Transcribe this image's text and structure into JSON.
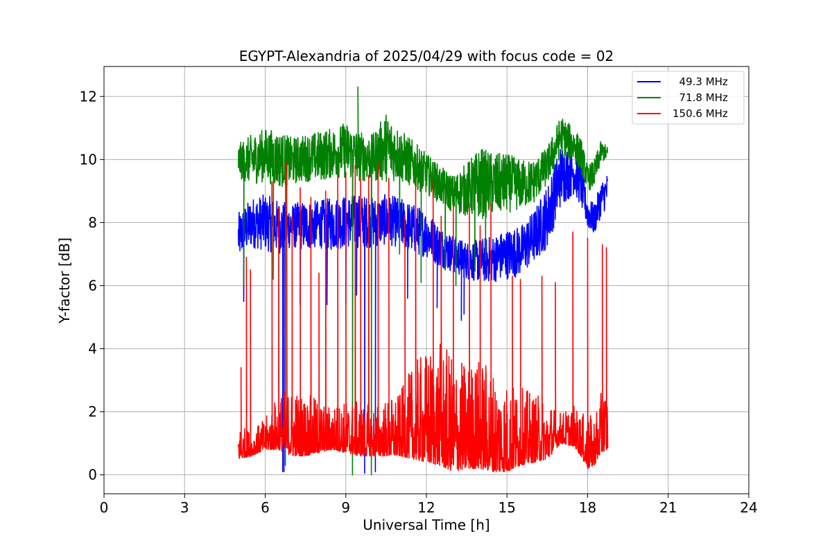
{
  "chart_data": {
    "type": "line",
    "title": "EGYPT-Alexandria of 2025/04/29 with focus code = 02",
    "xlabel": "Universal Time [h]",
    "ylabel": "Y-factor [dB]",
    "xlim": [
      0,
      24
    ],
    "ylim": [
      -0.6,
      12.95
    ],
    "xticks": [
      0,
      3,
      6,
      9,
      12,
      15,
      18,
      21,
      24
    ],
    "yticks": [
      0,
      2,
      4,
      6,
      8,
      10,
      12
    ],
    "grid": true,
    "legend_position": "top-right",
    "series": [
      {
        "name": "  49.3 MHz",
        "color": "#0000ff",
        "x": [
          5.0,
          5.5,
          6.0,
          6.5,
          7.0,
          7.5,
          8.0,
          8.5,
          9.0,
          9.5,
          10.0,
          10.5,
          11.0,
          11.5,
          12.0,
          12.5,
          13.0,
          13.5,
          14.0,
          14.5,
          15.0,
          15.5,
          16.0,
          16.5,
          17.0,
          17.5,
          17.75,
          18.0,
          18.25,
          18.5,
          18.75
        ],
        "low": [
          6.8,
          7.2,
          7.1,
          7.0,
          7.2,
          7.1,
          7.2,
          7.1,
          7.2,
          7.2,
          7.2,
          7.3,
          7.2,
          7.0,
          6.9,
          6.6,
          6.4,
          6.2,
          6.1,
          6.1,
          6.2,
          6.3,
          6.7,
          7.2,
          8.5,
          8.9,
          8.5,
          7.8,
          7.6,
          8.2,
          8.5
        ],
        "high": [
          8.3,
          8.8,
          8.9,
          8.7,
          8.6,
          8.7,
          8.7,
          8.8,
          8.9,
          8.9,
          8.8,
          8.9,
          8.8,
          8.6,
          8.4,
          7.9,
          7.6,
          7.4,
          7.5,
          7.6,
          7.8,
          7.9,
          8.4,
          9.2,
          10.5,
          10.3,
          9.9,
          8.8,
          8.6,
          9.3,
          9.6
        ],
        "spikes": [
          [
            5.2,
            5.5
          ],
          [
            6.7,
            0.1
          ],
          [
            6.65,
            0.1
          ],
          [
            7.3,
            5.4
          ],
          [
            8.3,
            5.4
          ],
          [
            9.0,
            5.4
          ],
          [
            9.4,
            5.7
          ],
          [
            9.7,
            0.05
          ],
          [
            10.1,
            0.1
          ],
          [
            11.3,
            5.6
          ],
          [
            12.4,
            5.3
          ],
          [
            13.3,
            4.9
          ],
          [
            13.4,
            5.1
          ]
        ]
      },
      {
        "name": "  71.8 MHz",
        "color": "#008000",
        "x": [
          5.0,
          5.5,
          6.0,
          6.5,
          7.0,
          7.5,
          8.0,
          8.5,
          9.0,
          9.5,
          10.0,
          10.5,
          11.0,
          11.5,
          12.0,
          12.5,
          13.0,
          13.5,
          14.0,
          14.5,
          15.0,
          15.5,
          16.0,
          16.5,
          17.0,
          17.5,
          17.75,
          18.0,
          18.25,
          18.5,
          18.75
        ],
        "low": [
          9.4,
          9.2,
          9.3,
          9.1,
          9.2,
          9.3,
          9.3,
          9.4,
          9.4,
          9.3,
          9.3,
          9.3,
          9.3,
          9.1,
          8.9,
          8.6,
          8.3,
          8.2,
          8.1,
          8.2,
          8.3,
          8.4,
          8.6,
          9.2,
          10.1,
          9.9,
          9.6,
          9.0,
          9.1,
          9.9,
          10.0
        ],
        "high": [
          10.5,
          10.8,
          11.0,
          10.9,
          10.7,
          10.8,
          10.9,
          11.0,
          11.2,
          10.9,
          10.8,
          11.5,
          11.0,
          10.6,
          10.2,
          9.8,
          9.5,
          9.9,
          10.4,
          10.2,
          10.2,
          10.0,
          10.0,
          10.4,
          11.4,
          11.0,
          10.7,
          9.8,
          10.0,
          10.6,
          10.4
        ],
        "spikes": [
          [
            5.2,
            6.0
          ],
          [
            6.3,
            6.2
          ],
          [
            6.75,
            0.3
          ],
          [
            9.25,
            0.0
          ],
          [
            9.45,
            12.3
          ],
          [
            9.95,
            0.0
          ],
          [
            11.0,
            7.0
          ],
          [
            11.8,
            6.1
          ],
          [
            12.7,
            6.5
          ],
          [
            13.1,
            6.0
          ],
          [
            13.8,
            6.5
          ],
          [
            14.2,
            6.8
          ]
        ]
      },
      {
        "name": "150.6 MHz",
        "color": "#ff0000",
        "x": [
          5.0,
          5.5,
          6.0,
          6.5,
          7.0,
          7.5,
          8.0,
          8.5,
          9.0,
          9.5,
          10.0,
          10.5,
          11.0,
          11.5,
          12.0,
          12.5,
          13.0,
          13.5,
          14.0,
          14.5,
          15.0,
          15.5,
          16.0,
          16.5,
          17.0,
          17.5,
          17.75,
          18.0,
          18.25,
          18.5,
          18.75
        ],
        "low": [
          0.5,
          0.6,
          0.8,
          0.8,
          0.6,
          0.6,
          0.7,
          0.8,
          0.7,
          0.6,
          0.6,
          0.6,
          0.6,
          0.5,
          0.4,
          0.3,
          0.1,
          0.2,
          0.2,
          0.1,
          0.1,
          0.3,
          0.4,
          0.5,
          1.0,
          0.9,
          0.6,
          0.2,
          0.3,
          0.7,
          0.8
        ],
        "high": [
          1.6,
          1.4,
          1.8,
          2.6,
          2.8,
          2.6,
          2.4,
          2.2,
          2.4,
          2.3,
          2.2,
          2.4,
          2.6,
          3.5,
          4.0,
          4.2,
          3.8,
          3.6,
          3.8,
          3.4,
          3.0,
          2.8,
          2.6,
          2.4,
          2.0,
          2.2,
          2.0,
          1.8,
          2.0,
          2.6,
          3.0
        ],
        "spikes": [
          [
            5.1,
            3.4
          ],
          [
            5.3,
            6.9
          ],
          [
            5.45,
            6.5
          ],
          [
            6.25,
            9.3
          ],
          [
            6.5,
            8.5
          ],
          [
            6.8,
            9.9
          ],
          [
            7.0,
            8.2
          ],
          [
            7.3,
            9.1
          ],
          [
            7.7,
            8.8
          ],
          [
            8.0,
            6.4
          ],
          [
            8.25,
            9.0
          ],
          [
            8.7,
            9.5
          ],
          [
            9.0,
            9.6
          ],
          [
            9.35,
            9.8
          ],
          [
            9.55,
            9.4
          ],
          [
            9.85,
            9.5
          ],
          [
            10.2,
            9.9
          ],
          [
            10.6,
            9.4
          ],
          [
            11.2,
            8.2
          ],
          [
            11.6,
            9.3
          ],
          [
            12.25,
            9.3
          ],
          [
            12.55,
            8.2
          ],
          [
            13.0,
            8.5
          ],
          [
            13.6,
            8.6
          ],
          [
            14.0,
            7.9
          ],
          [
            14.4,
            8.6
          ],
          [
            15.2,
            6.3
          ],
          [
            15.5,
            6.2
          ],
          [
            16.3,
            6.3
          ],
          [
            16.8,
            6.1
          ],
          [
            17.45,
            7.7
          ],
          [
            18.0,
            7.5
          ],
          [
            18.55,
            7.3
          ],
          [
            18.7,
            7.2
          ]
        ]
      }
    ]
  }
}
